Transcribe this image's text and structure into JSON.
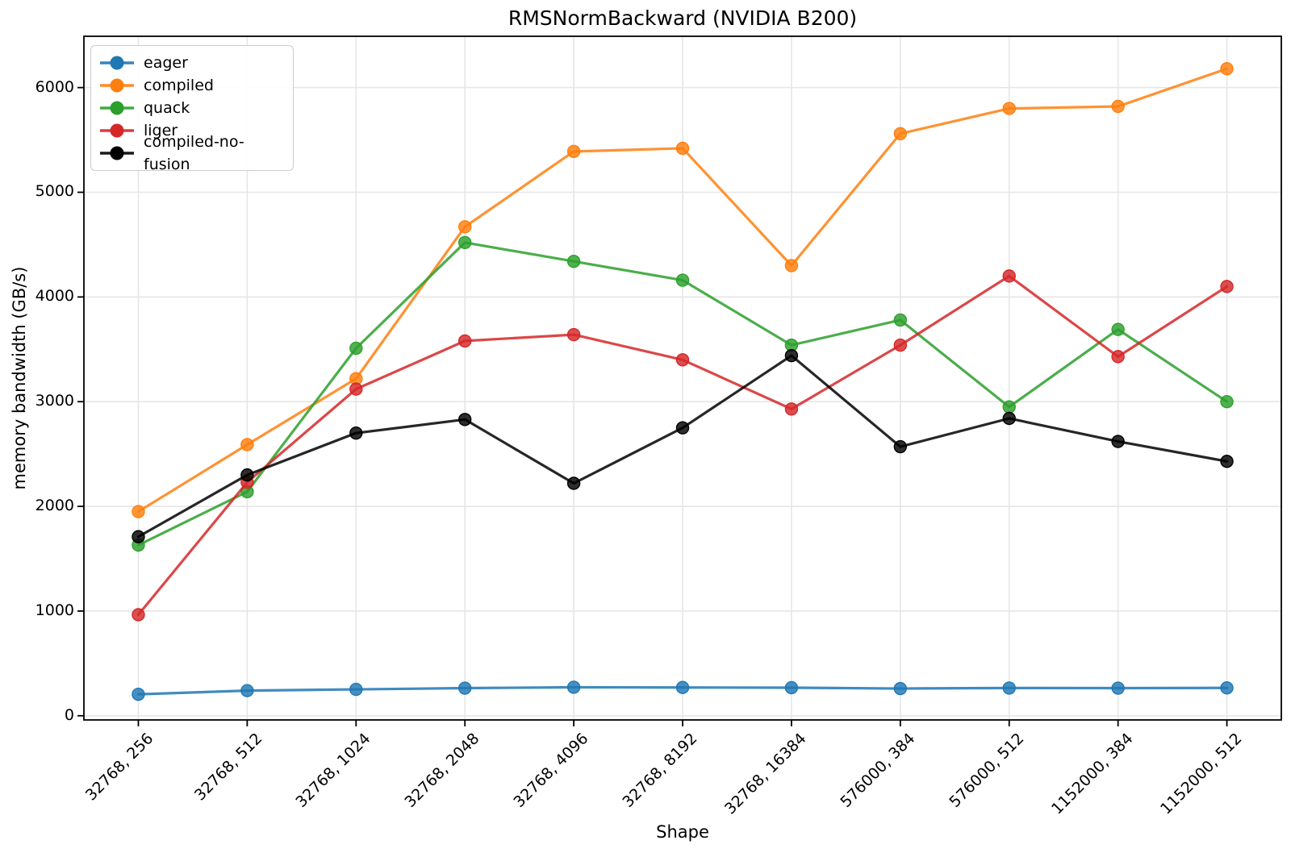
{
  "chart_data": {
    "type": "line",
    "title": "RMSNormBackward (NVIDIA B200)",
    "xlabel": "Shape",
    "ylabel": "memory bandwidth (GB/s)",
    "categories": [
      "32768, 256",
      "32768, 512",
      "32768, 1024",
      "32768, 2048",
      "32768, 4096",
      "32768, 8192",
      "32768, 16384",
      "576000, 384",
      "576000, 512",
      "1152000, 384",
      "1152000, 512"
    ],
    "series": [
      {
        "name": "eager",
        "color": "#1f77b4",
        "values": [
          205,
          240,
          252,
          264,
          272,
          270,
          268,
          260,
          265,
          264,
          266
        ]
      },
      {
        "name": "compiled",
        "color": "#ff7f0e",
        "values": [
          1950,
          2590,
          3220,
          4670,
          5390,
          5420,
          4300,
          5560,
          5800,
          5820,
          6180
        ]
      },
      {
        "name": "quack",
        "color": "#2ca02c",
        "values": [
          1630,
          2140,
          3510,
          4520,
          4340,
          4160,
          3540,
          3780,
          2950,
          3690,
          3000
        ]
      },
      {
        "name": "liger",
        "color": "#d62728",
        "values": [
          965,
          2230,
          3120,
          3580,
          3640,
          3400,
          2930,
          3540,
          4200,
          3430,
          4100
        ]
      },
      {
        "name": "compiled-no-fusion",
        "color": "#000000",
        "values": [
          1710,
          2300,
          2700,
          2830,
          2220,
          2750,
          3440,
          2570,
          2840,
          2620,
          2430
        ]
      }
    ],
    "yticks": [
      0,
      1000,
      2000,
      3000,
      4000,
      5000,
      6000
    ],
    "ylim": [
      -40,
      6490
    ],
    "grid": true,
    "legend_position": "upper-left",
    "styles": {
      "grid_color": "#e6e6e6",
      "spine_color": "#000000",
      "background": "#ffffff"
    }
  }
}
